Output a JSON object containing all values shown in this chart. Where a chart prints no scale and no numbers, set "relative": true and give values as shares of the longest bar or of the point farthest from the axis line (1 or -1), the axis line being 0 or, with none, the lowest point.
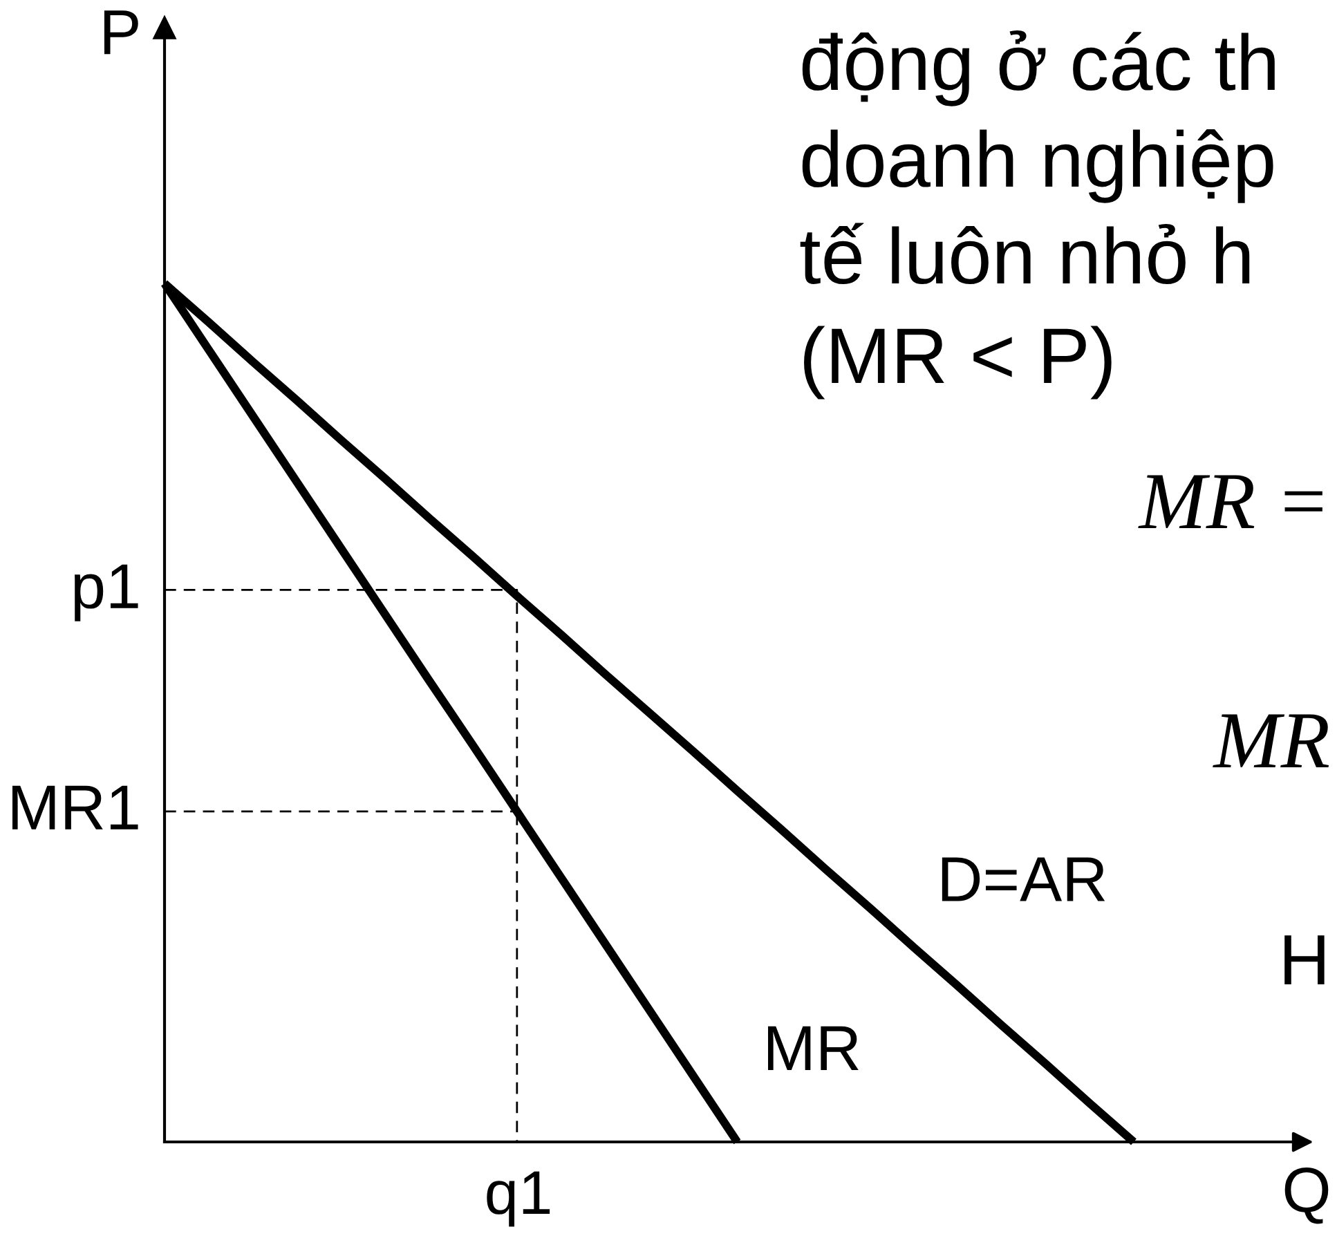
{
  "chart_data": {
    "type": "line",
    "relative": true,
    "xlabel": "Q",
    "ylabel": "P",
    "categories": [
      null,
      null,
      null,
      null,
      null,
      null,
      null,
      null,
      null,
      null,
      null,
      null,
      null,
      null,
      null,
      null,
      null,
      null,
      null,
      null,
      null,
      null,
      null
    ],
    "series": [
      {
        "name": "D=AR",
        "color": "#000000",
        "values": [
          1,
          0.955,
          0.909,
          0.864,
          0.818,
          0.773,
          0.727,
          0.682,
          0.636,
          0.591,
          0.545,
          0.5,
          0.455,
          0.409,
          0.364,
          0.318,
          0.273,
          0.227,
          0.182,
          0.136,
          0.091,
          0.045,
          0
        ]
      },
      {
        "name": "MR",
        "color": "#000000",
        "values": [
          1,
          0.923,
          0.846,
          0.769,
          0.692,
          0.615,
          0.538,
          0.462,
          0.385,
          0.308,
          0.231,
          0.154,
          0.077,
          0,
          null,
          null,
          null,
          null,
          null,
          null,
          null,
          null,
          null
        ]
      },
      {
        "type": "step",
        "color": "#000000",
        "line_style": "dashed",
        "values": [
          0.643,
          0.643,
          0.643,
          0.643,
          0.643,
          0.643,
          0.643,
          0.643,
          0,
          null,
          null,
          null,
          null,
          null,
          null,
          null,
          null,
          null,
          null,
          null,
          null,
          null,
          null
        ]
      },
      {
        "color": "#000000",
        "line_style": "dashed",
        "values": [
          0.385,
          0.385,
          0.385,
          0.385,
          0.385,
          0.385,
          0.385,
          0.385,
          0.385,
          null,
          null,
          null,
          null,
          null,
          null,
          null,
          null,
          null,
          null,
          null,
          null,
          null,
          null
        ]
      }
    ],
    "annotations": [
      "động ở các th",
      "doanh nghiệp",
      "tế luôn nhỏ h",
      "(MR < P)",
      "MR =",
      "MR",
      "H",
      "q1",
      "p1",
      "MR1"
    ]
  }
}
